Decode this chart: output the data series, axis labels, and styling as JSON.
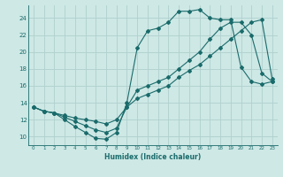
{
  "xlabel": "Humidex (Indice chaleur)",
  "xlim": [
    -0.5,
    23.5
  ],
  "ylim": [
    9,
    25.5
  ],
  "yticks": [
    10,
    12,
    14,
    16,
    18,
    20,
    22,
    24
  ],
  "xticks": [
    0,
    1,
    2,
    3,
    4,
    5,
    6,
    7,
    8,
    9,
    10,
    11,
    12,
    13,
    14,
    15,
    16,
    17,
    18,
    19,
    20,
    21,
    22,
    23
  ],
  "bg_color": "#cde8e5",
  "grid_color": "#b0d0ce",
  "line_color": "#1a6b6b",
  "line1_x": [
    0,
    1,
    2,
    3,
    4,
    5,
    6,
    7,
    8,
    9,
    10,
    11,
    12,
    13,
    14,
    15,
    16,
    17,
    18,
    19,
    20,
    21,
    22,
    23
  ],
  "line1_y": [
    13.5,
    13.0,
    12.8,
    12.0,
    11.2,
    10.5,
    9.8,
    9.7,
    10.5,
    14.0,
    20.5,
    22.5,
    22.8,
    23.5,
    24.8,
    24.8,
    25.0,
    24.0,
    23.8,
    23.8,
    18.2,
    16.5,
    16.2,
    16.5
  ],
  "line2_x": [
    0,
    1,
    2,
    3,
    4,
    5,
    6,
    7,
    8,
    9,
    10,
    11,
    12,
    13,
    14,
    15,
    16,
    17,
    18,
    19,
    20,
    21,
    22,
    23
  ],
  "line2_y": [
    13.5,
    13.0,
    12.8,
    12.3,
    11.8,
    11.3,
    10.8,
    10.5,
    11.0,
    13.5,
    15.5,
    16.0,
    16.5,
    17.0,
    18.0,
    19.0,
    20.0,
    21.5,
    22.8,
    23.5,
    23.5,
    22.0,
    17.5,
    16.5
  ],
  "line3_x": [
    0,
    1,
    2,
    3,
    4,
    5,
    6,
    7,
    8,
    9,
    10,
    11,
    12,
    13,
    14,
    15,
    16,
    17,
    18,
    19,
    20,
    21,
    22,
    23
  ],
  "line3_y": [
    13.5,
    13.0,
    12.8,
    12.5,
    12.2,
    12.0,
    11.8,
    11.5,
    12.0,
    13.5,
    14.5,
    15.0,
    15.5,
    16.0,
    17.0,
    17.8,
    18.5,
    19.5,
    20.5,
    21.5,
    22.5,
    23.5,
    23.8,
    16.8
  ]
}
